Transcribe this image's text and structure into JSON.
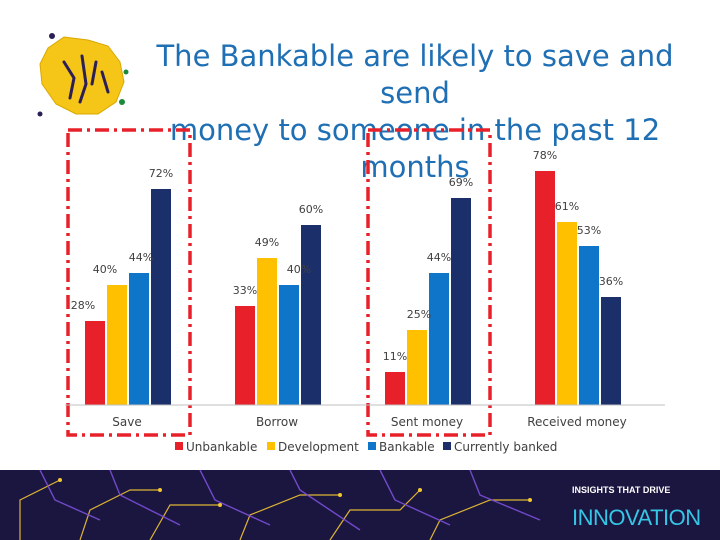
{
  "slide": {
    "title_line1": "The Bankable are likely to save and send",
    "title_line2": "money to someone in the past 12 months"
  },
  "footer": {
    "tagline": "INSIGHTS THAT DRIVE",
    "brand": "INNOVATION"
  },
  "chart_data": {
    "type": "bar",
    "categories": [
      "Save",
      "Borrow",
      "Sent money",
      "Received money"
    ],
    "series": [
      {
        "name": "Unbankable",
        "color": "#e8202a",
        "values": [
          28,
          33,
          11,
          78
        ]
      },
      {
        "name": "Development",
        "color": "#ffc000",
        "values": [
          40,
          49,
          25,
          61
        ]
      },
      {
        "name": "Bankable",
        "color": "#0f75c9",
        "values": [
          44,
          40,
          44,
          53
        ]
      },
      {
        "name": "Currently banked",
        "color": "#1b2f6b",
        "values": [
          72,
          60,
          69,
          36
        ]
      }
    ],
    "value_suffix": "%",
    "legend_position": "bottom",
    "grid": false,
    "highlighted_categories": [
      "Save",
      "Sent money"
    ],
    "highlight_color": "#e8202a"
  }
}
